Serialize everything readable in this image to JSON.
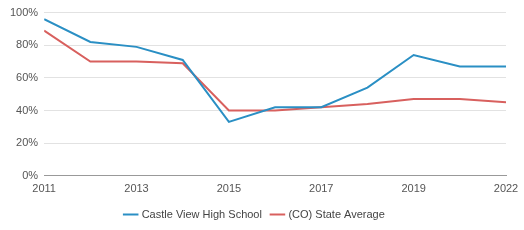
{
  "chart_data": {
    "type": "line",
    "categories": [
      "2011",
      null,
      "2013",
      null,
      "2015",
      null,
      "2017",
      null,
      "2019",
      null,
      "2022"
    ],
    "series": [
      {
        "name": "Castle View High School",
        "color": "#2a8fc4",
        "values": [
          96,
          82,
          79,
          71,
          33,
          42,
          42,
          54,
          74,
          67,
          67
        ]
      },
      {
        "name": "(CO) State Average",
        "color": "#d8605e",
        "values": [
          89,
          70,
          70,
          69,
          40,
          40,
          42,
          44,
          47,
          47,
          45
        ]
      }
    ],
    "ylim": [
      0,
      100
    ],
    "yticks": [
      {
        "value": 0,
        "label": "0%"
      },
      {
        "value": 20,
        "label": "20%"
      },
      {
        "value": 40,
        "label": "40%"
      },
      {
        "value": 60,
        "label": "60%"
      },
      {
        "value": 80,
        "label": "80%"
      },
      {
        "value": 100,
        "label": "100%"
      }
    ],
    "grid": true,
    "legend": "bottom"
  }
}
